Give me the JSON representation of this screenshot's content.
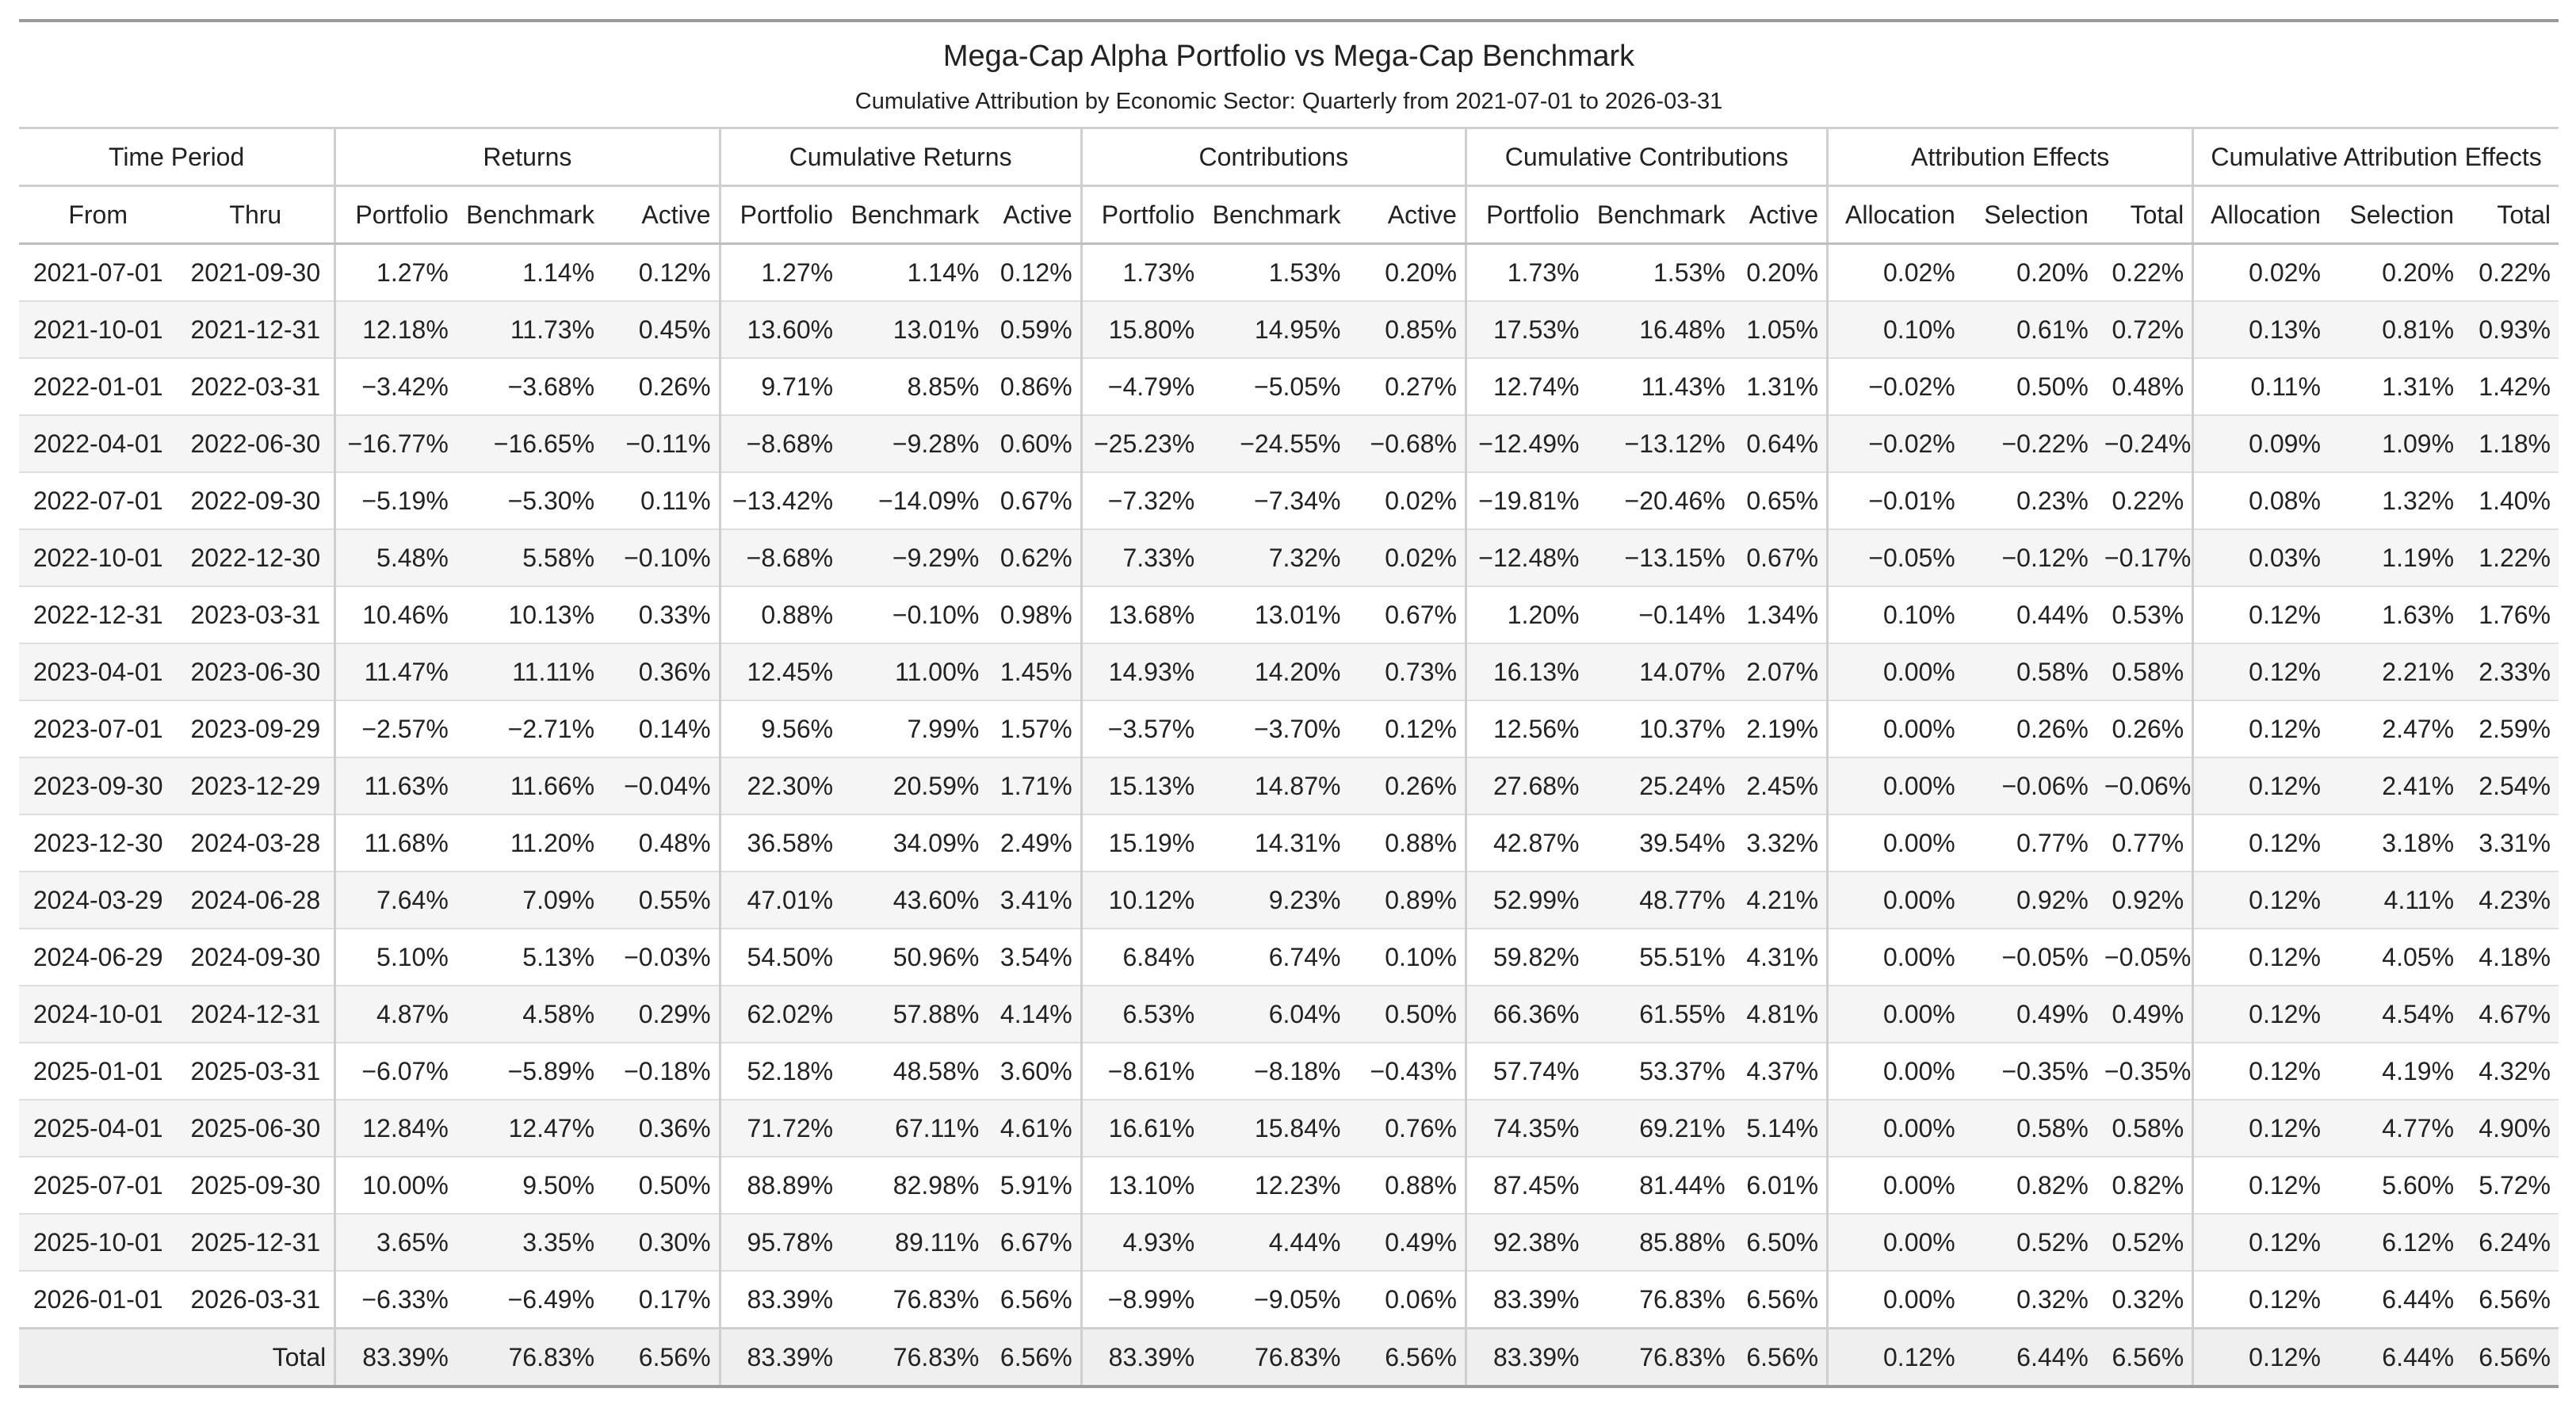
{
  "title": "Mega-Cap Alpha Portfolio vs Mega-Cap Benchmark",
  "subtitle": "Cumulative Attribution by Economic Sector: Quarterly from 2021-07-01 to 2026-03-31",
  "groups": [
    "Time Period",
    "Returns",
    "Cumulative Returns",
    "Contributions",
    "Cumulative Contributions",
    "Attribution Effects",
    "Cumulative Attribution Effects"
  ],
  "columns": [
    "From",
    "Thru",
    "Portfolio",
    "Benchmark",
    "Active",
    "Portfolio",
    "Benchmark",
    "Active",
    "Portfolio",
    "Benchmark",
    "Active",
    "Portfolio",
    "Benchmark",
    "Active",
    "Allocation",
    "Selection",
    "Total",
    "Allocation",
    "Selection",
    "Total"
  ],
  "rows": [
    [
      "2021-07-01",
      "2021-09-30",
      "1.27%",
      "1.14%",
      "0.12%",
      "1.27%",
      "1.14%",
      "0.12%",
      "1.73%",
      "1.53%",
      "0.20%",
      "1.73%",
      "1.53%",
      "0.20%",
      "0.02%",
      "0.20%",
      "0.22%",
      "0.02%",
      "0.20%",
      "0.22%"
    ],
    [
      "2021-10-01",
      "2021-12-31",
      "12.18%",
      "11.73%",
      "0.45%",
      "13.60%",
      "13.01%",
      "0.59%",
      "15.80%",
      "14.95%",
      "0.85%",
      "17.53%",
      "16.48%",
      "1.05%",
      "0.10%",
      "0.61%",
      "0.72%",
      "0.13%",
      "0.81%",
      "0.93%"
    ],
    [
      "2022-01-01",
      "2022-03-31",
      "−3.42%",
      "−3.68%",
      "0.26%",
      "9.71%",
      "8.85%",
      "0.86%",
      "−4.79%",
      "−5.05%",
      "0.27%",
      "12.74%",
      "11.43%",
      "1.31%",
      "−0.02%",
      "0.50%",
      "0.48%",
      "0.11%",
      "1.31%",
      "1.42%"
    ],
    [
      "2022-04-01",
      "2022-06-30",
      "−16.77%",
      "−16.65%",
      "−0.11%",
      "−8.68%",
      "−9.28%",
      "0.60%",
      "−25.23%",
      "−24.55%",
      "−0.68%",
      "−12.49%",
      "−13.12%",
      "0.64%",
      "−0.02%",
      "−0.22%",
      "−0.24%",
      "0.09%",
      "1.09%",
      "1.18%"
    ],
    [
      "2022-07-01",
      "2022-09-30",
      "−5.19%",
      "−5.30%",
      "0.11%",
      "−13.42%",
      "−14.09%",
      "0.67%",
      "−7.32%",
      "−7.34%",
      "0.02%",
      "−19.81%",
      "−20.46%",
      "0.65%",
      "−0.01%",
      "0.23%",
      "0.22%",
      "0.08%",
      "1.32%",
      "1.40%"
    ],
    [
      "2022-10-01",
      "2022-12-30",
      "5.48%",
      "5.58%",
      "−0.10%",
      "−8.68%",
      "−9.29%",
      "0.62%",
      "7.33%",
      "7.32%",
      "0.02%",
      "−12.48%",
      "−13.15%",
      "0.67%",
      "−0.05%",
      "−0.12%",
      "−0.17%",
      "0.03%",
      "1.19%",
      "1.22%"
    ],
    [
      "2022-12-31",
      "2023-03-31",
      "10.46%",
      "10.13%",
      "0.33%",
      "0.88%",
      "−0.10%",
      "0.98%",
      "13.68%",
      "13.01%",
      "0.67%",
      "1.20%",
      "−0.14%",
      "1.34%",
      "0.10%",
      "0.44%",
      "0.53%",
      "0.12%",
      "1.63%",
      "1.76%"
    ],
    [
      "2023-04-01",
      "2023-06-30",
      "11.47%",
      "11.11%",
      "0.36%",
      "12.45%",
      "11.00%",
      "1.45%",
      "14.93%",
      "14.20%",
      "0.73%",
      "16.13%",
      "14.07%",
      "2.07%",
      "0.00%",
      "0.58%",
      "0.58%",
      "0.12%",
      "2.21%",
      "2.33%"
    ],
    [
      "2023-07-01",
      "2023-09-29",
      "−2.57%",
      "−2.71%",
      "0.14%",
      "9.56%",
      "7.99%",
      "1.57%",
      "−3.57%",
      "−3.70%",
      "0.12%",
      "12.56%",
      "10.37%",
      "2.19%",
      "0.00%",
      "0.26%",
      "0.26%",
      "0.12%",
      "2.47%",
      "2.59%"
    ],
    [
      "2023-09-30",
      "2023-12-29",
      "11.63%",
      "11.66%",
      "−0.04%",
      "22.30%",
      "20.59%",
      "1.71%",
      "15.13%",
      "14.87%",
      "0.26%",
      "27.68%",
      "25.24%",
      "2.45%",
      "0.00%",
      "−0.06%",
      "−0.06%",
      "0.12%",
      "2.41%",
      "2.54%"
    ],
    [
      "2023-12-30",
      "2024-03-28",
      "11.68%",
      "11.20%",
      "0.48%",
      "36.58%",
      "34.09%",
      "2.49%",
      "15.19%",
      "14.31%",
      "0.88%",
      "42.87%",
      "39.54%",
      "3.32%",
      "0.00%",
      "0.77%",
      "0.77%",
      "0.12%",
      "3.18%",
      "3.31%"
    ],
    [
      "2024-03-29",
      "2024-06-28",
      "7.64%",
      "7.09%",
      "0.55%",
      "47.01%",
      "43.60%",
      "3.41%",
      "10.12%",
      "9.23%",
      "0.89%",
      "52.99%",
      "48.77%",
      "4.21%",
      "0.00%",
      "0.92%",
      "0.92%",
      "0.12%",
      "4.11%",
      "4.23%"
    ],
    [
      "2024-06-29",
      "2024-09-30",
      "5.10%",
      "5.13%",
      "−0.03%",
      "54.50%",
      "50.96%",
      "3.54%",
      "6.84%",
      "6.74%",
      "0.10%",
      "59.82%",
      "55.51%",
      "4.31%",
      "0.00%",
      "−0.05%",
      "−0.05%",
      "0.12%",
      "4.05%",
      "4.18%"
    ],
    [
      "2024-10-01",
      "2024-12-31",
      "4.87%",
      "4.58%",
      "0.29%",
      "62.02%",
      "57.88%",
      "4.14%",
      "6.53%",
      "6.04%",
      "0.50%",
      "66.36%",
      "61.55%",
      "4.81%",
      "0.00%",
      "0.49%",
      "0.49%",
      "0.12%",
      "4.54%",
      "4.67%"
    ],
    [
      "2025-01-01",
      "2025-03-31",
      "−6.07%",
      "−5.89%",
      "−0.18%",
      "52.18%",
      "48.58%",
      "3.60%",
      "−8.61%",
      "−8.18%",
      "−0.43%",
      "57.74%",
      "53.37%",
      "4.37%",
      "0.00%",
      "−0.35%",
      "−0.35%",
      "0.12%",
      "4.19%",
      "4.32%"
    ],
    [
      "2025-04-01",
      "2025-06-30",
      "12.84%",
      "12.47%",
      "0.36%",
      "71.72%",
      "67.11%",
      "4.61%",
      "16.61%",
      "15.84%",
      "0.76%",
      "74.35%",
      "69.21%",
      "5.14%",
      "0.00%",
      "0.58%",
      "0.58%",
      "0.12%",
      "4.77%",
      "4.90%"
    ],
    [
      "2025-07-01",
      "2025-09-30",
      "10.00%",
      "9.50%",
      "0.50%",
      "88.89%",
      "82.98%",
      "5.91%",
      "13.10%",
      "12.23%",
      "0.88%",
      "87.45%",
      "81.44%",
      "6.01%",
      "0.00%",
      "0.82%",
      "0.82%",
      "0.12%",
      "5.60%",
      "5.72%"
    ],
    [
      "2025-10-01",
      "2025-12-31",
      "3.65%",
      "3.35%",
      "0.30%",
      "95.78%",
      "89.11%",
      "6.67%",
      "4.93%",
      "4.44%",
      "0.49%",
      "92.38%",
      "85.88%",
      "6.50%",
      "0.00%",
      "0.52%",
      "0.52%",
      "0.12%",
      "6.12%",
      "6.24%"
    ],
    [
      "2026-01-01",
      "2026-03-31",
      "−6.33%",
      "−6.49%",
      "0.17%",
      "83.39%",
      "76.83%",
      "6.56%",
      "−8.99%",
      "−9.05%",
      "0.06%",
      "83.39%",
      "76.83%",
      "6.56%",
      "0.00%",
      "0.32%",
      "0.32%",
      "0.12%",
      "6.44%",
      "6.56%"
    ]
  ],
  "total": [
    "",
    "Total",
    "83.39%",
    "76.83%",
    "6.56%",
    "83.39%",
    "76.83%",
    "6.56%",
    "83.39%",
    "76.83%",
    "6.56%",
    "83.39%",
    "76.83%",
    "6.56%",
    "0.12%",
    "6.44%",
    "6.56%",
    "0.12%",
    "6.44%",
    "6.56%"
  ]
}
